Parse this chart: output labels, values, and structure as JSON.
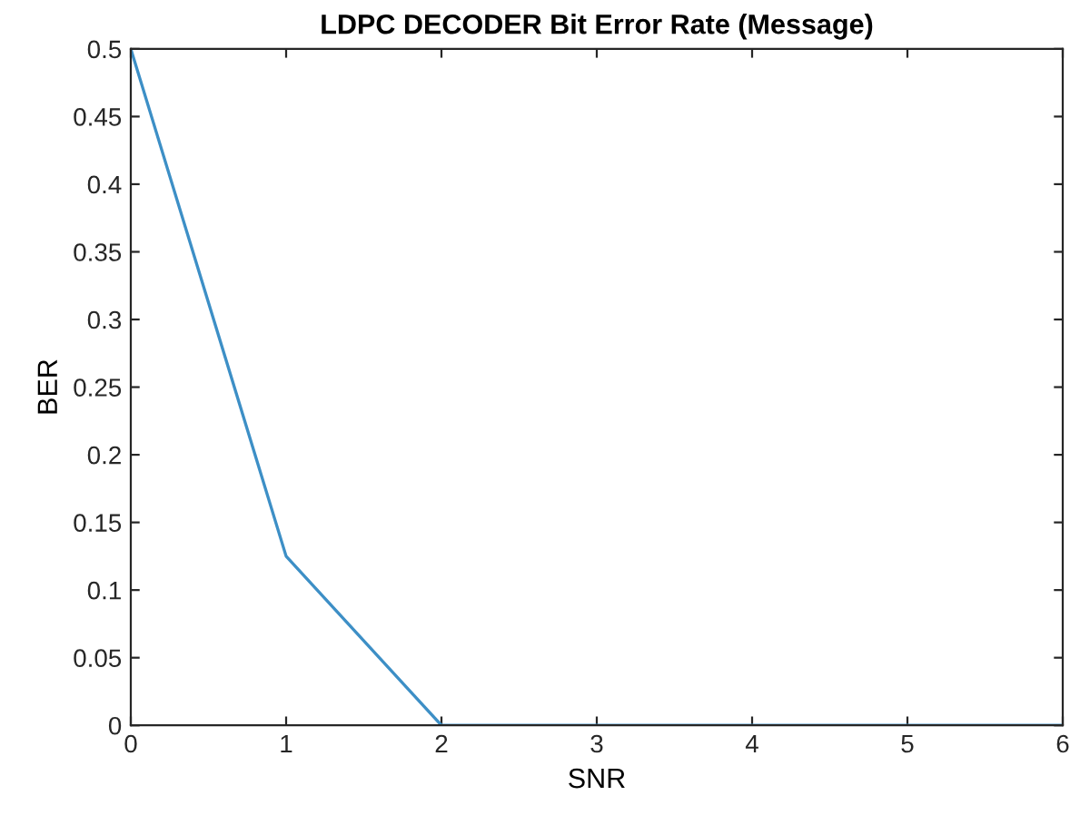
{
  "chart_data": {
    "type": "line",
    "title": "LDPC DECODER Bit Error Rate (Message)",
    "xlabel": "SNR",
    "ylabel": "BER",
    "x": [
      0,
      1,
      2,
      3,
      4,
      5,
      6
    ],
    "series": [
      {
        "color": "#3d8fc6",
        "values": [
          0.5,
          0.125,
          0,
          0,
          0,
          0,
          0
        ]
      }
    ],
    "xlim": [
      0,
      6
    ],
    "xticks": [
      0,
      1,
      2,
      3,
      4,
      5,
      6
    ],
    "ylim": [
      0,
      0.5
    ],
    "yticks": [
      0,
      0.05,
      0.1,
      0.15,
      0.2,
      0.25,
      0.3,
      0.35,
      0.4,
      0.45,
      0.5
    ],
    "grid": false,
    "marker": "none",
    "line_style": "solid"
  }
}
